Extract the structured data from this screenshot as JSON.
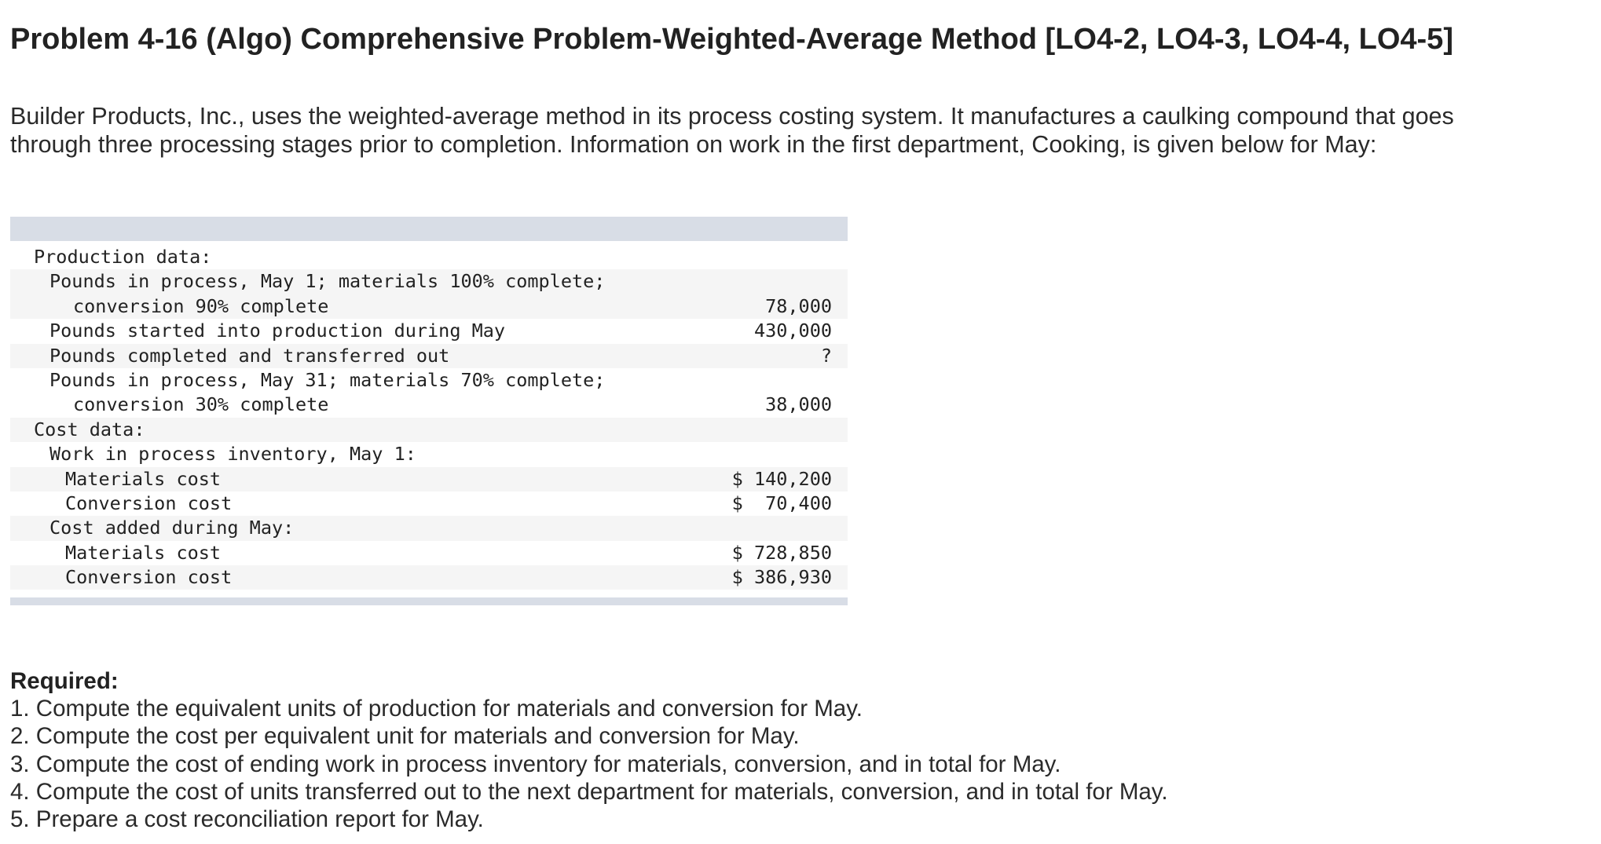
{
  "title": "Problem 4-16 (Algo) Comprehensive Problem-Weighted-Average Method [LO4-2, LO4-3, LO4-4, LO4-5]",
  "intro": "Builder Products, Inc., uses the weighted-average method in its process costing system. It manufactures a caulking compound that goes through three processing stages prior to completion. Information on work in the first department, Cooking, is given below for May:",
  "table": {
    "rows": [
      {
        "label": "Production data:",
        "value": ""
      },
      {
        "label": "Pounds in process, May 1; materials 100% complete;",
        "value": ""
      },
      {
        "label": "conversion 90% complete",
        "value": "78,000"
      },
      {
        "label": "Pounds started into production during May",
        "value": "430,000"
      },
      {
        "label": "Pounds completed and transferred out",
        "value": "?"
      },
      {
        "label": "Pounds in process, May 31; materials 70% complete;",
        "value": ""
      },
      {
        "label": "conversion 30% complete",
        "value": "38,000"
      },
      {
        "label": "Cost data:",
        "value": ""
      },
      {
        "label": "Work in process inventory, May 1:",
        "value": ""
      },
      {
        "label": "Materials cost",
        "value": "$ 140,200"
      },
      {
        "label": "Conversion cost",
        "value": "$  70,400"
      },
      {
        "label": "Cost added during May:",
        "value": ""
      },
      {
        "label": "Materials cost",
        "value": "$ 728,850"
      },
      {
        "label": "Conversion cost",
        "value": "$ 386,930"
      }
    ]
  },
  "required": {
    "heading": "Required:",
    "items": [
      "1. Compute the equivalent units of production for materials and conversion for May.",
      "2. Compute the cost per equivalent unit for materials and conversion for May.",
      "3. Compute the cost of ending work in process inventory for materials, conversion, and in total for May.",
      "4. Compute the cost of units transferred out to the next department for materials, conversion, and in total for May.",
      "5. Prepare a cost reconciliation report for May."
    ]
  }
}
